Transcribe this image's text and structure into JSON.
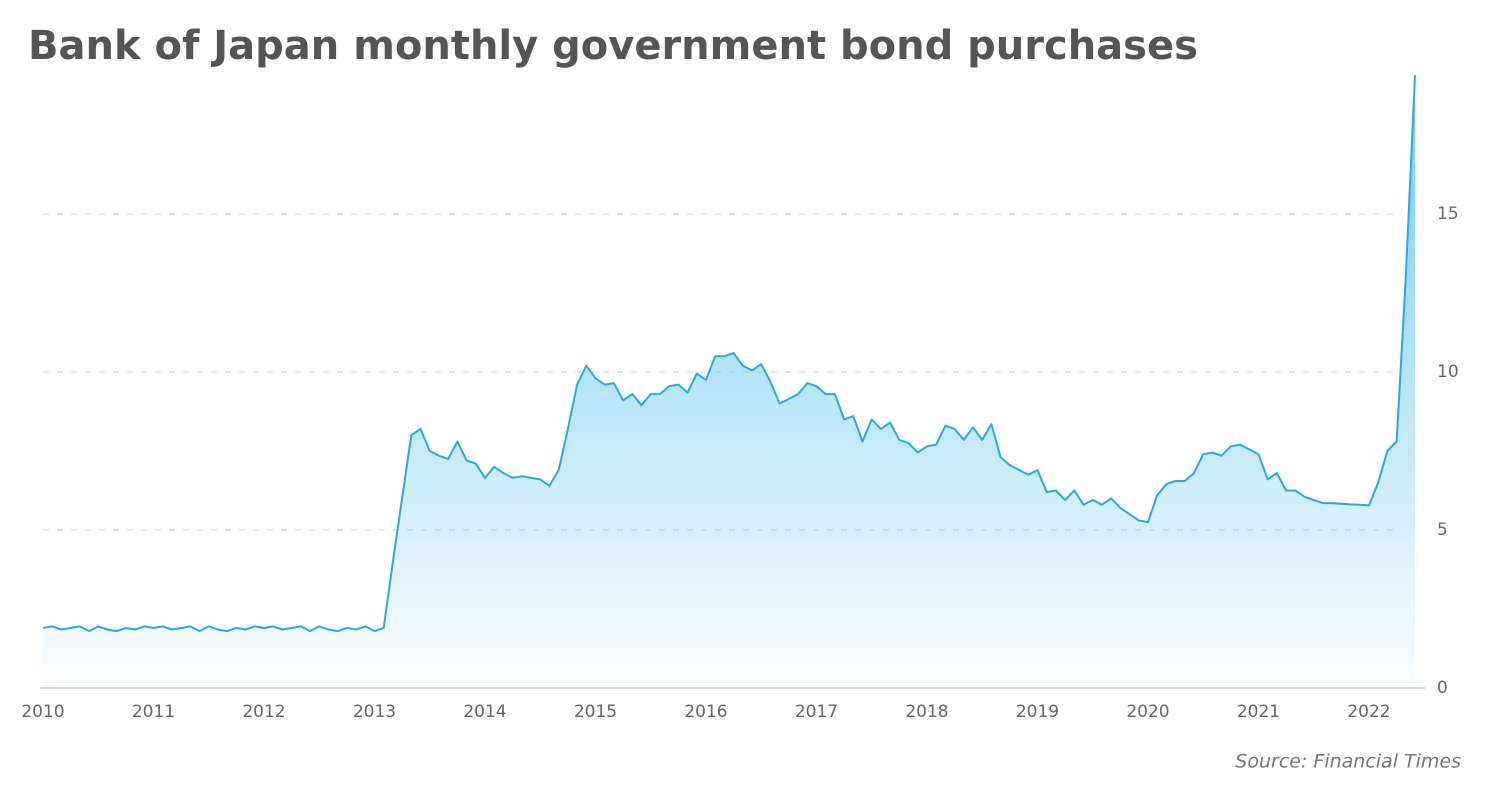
{
  "chart_data": {
    "type": "area",
    "title": "Bank of Japan monthly government bond purchases",
    "source": "Source: Financial Times",
    "color": "#29abe2",
    "categories": [
      "2010",
      null,
      null,
      null,
      null,
      null,
      null,
      null,
      null,
      null,
      null,
      null,
      "2011",
      null,
      null,
      null,
      null,
      null,
      null,
      null,
      null,
      null,
      null,
      null,
      "2012",
      null,
      null,
      null,
      null,
      null,
      null,
      null,
      null,
      null,
      null,
      null,
      "2013",
      null,
      null,
      null,
      null,
      null,
      null,
      null,
      null,
      null,
      null,
      null,
      "2014",
      null,
      null,
      null,
      null,
      null,
      null,
      null,
      null,
      null,
      null,
      null,
      "2015",
      null,
      null,
      null,
      null,
      null,
      null,
      null,
      null,
      null,
      null,
      null,
      "2016",
      null,
      null,
      null,
      null,
      null,
      null,
      null,
      null,
      null,
      null,
      null,
      "2017",
      null,
      null,
      null,
      null,
      null,
      null,
      null,
      null,
      null,
      null,
      null,
      "2018",
      null,
      null,
      null,
      null,
      null,
      null,
      null,
      null,
      null,
      null,
      null,
      "2019",
      null,
      null,
      null,
      null,
      null,
      null,
      null,
      null,
      null,
      null,
      null,
      "2020",
      null,
      null,
      null,
      null,
      null,
      null,
      null,
      null,
      null,
      null,
      null,
      "2021",
      null,
      null,
      null,
      null,
      null,
      null,
      null,
      null,
      null,
      null,
      null,
      "2022",
      null,
      null,
      null,
      null,
      null
    ],
    "values": [
      1.9,
      1.95,
      1.85,
      1.9,
      1.95,
      1.8,
      1.95,
      1.85,
      1.8,
      1.9,
      1.85,
      1.95,
      1.9,
      1.95,
      1.85,
      1.9,
      1.95,
      1.8,
      1.95,
      1.85,
      1.8,
      1.9,
      1.85,
      1.95,
      1.9,
      1.95,
      1.85,
      1.9,
      1.95,
      1.8,
      1.95,
      1.85,
      1.8,
      1.9,
      1.85,
      1.95,
      1.8,
      1.9,
      4.0,
      6.0,
      8.0,
      8.2,
      7.5,
      7.35,
      7.25,
      7.8,
      7.2,
      7.1,
      6.65,
      7.0,
      6.8,
      6.65,
      6.7,
      6.65,
      6.6,
      6.4,
      6.9,
      8.2,
      9.6,
      10.2,
      9.8,
      9.6,
      9.65,
      9.1,
      9.3,
      8.95,
      9.3,
      9.3,
      9.55,
      9.6,
      9.35,
      9.95,
      9.75,
      10.5,
      10.5,
      10.6,
      10.2,
      10.05,
      10.25,
      9.7,
      9.0,
      9.15,
      9.3,
      9.65,
      9.55,
      9.3,
      9.3,
      8.5,
      8.6,
      7.8,
      8.5,
      8.2,
      8.4,
      7.85,
      7.75,
      7.45,
      7.65,
      7.7,
      8.3,
      8.2,
      7.85,
      8.25,
      7.85,
      8.35,
      7.3,
      7.05,
      6.9,
      6.75,
      6.9,
      6.2,
      6.25,
      5.95,
      6.25,
      5.8,
      5.95,
      5.8,
      6.0,
      5.7,
      5.5,
      5.3,
      5.25,
      6.1,
      6.45,
      6.55,
      6.55,
      6.8,
      7.4,
      7.45,
      7.35,
      7.65,
      7.7,
      7.55,
      7.4,
      6.6,
      6.8,
      6.25,
      6.25,
      6.05,
      5.95,
      5.85,
      5.85,
      5.83,
      5.81,
      5.8,
      5.78,
      6.5,
      7.5,
      7.8,
      13.0,
      19.4
    ],
    "ylim": [
      0,
      20
    ],
    "yticks": [
      0,
      5,
      10,
      15
    ],
    "grid": true
  }
}
